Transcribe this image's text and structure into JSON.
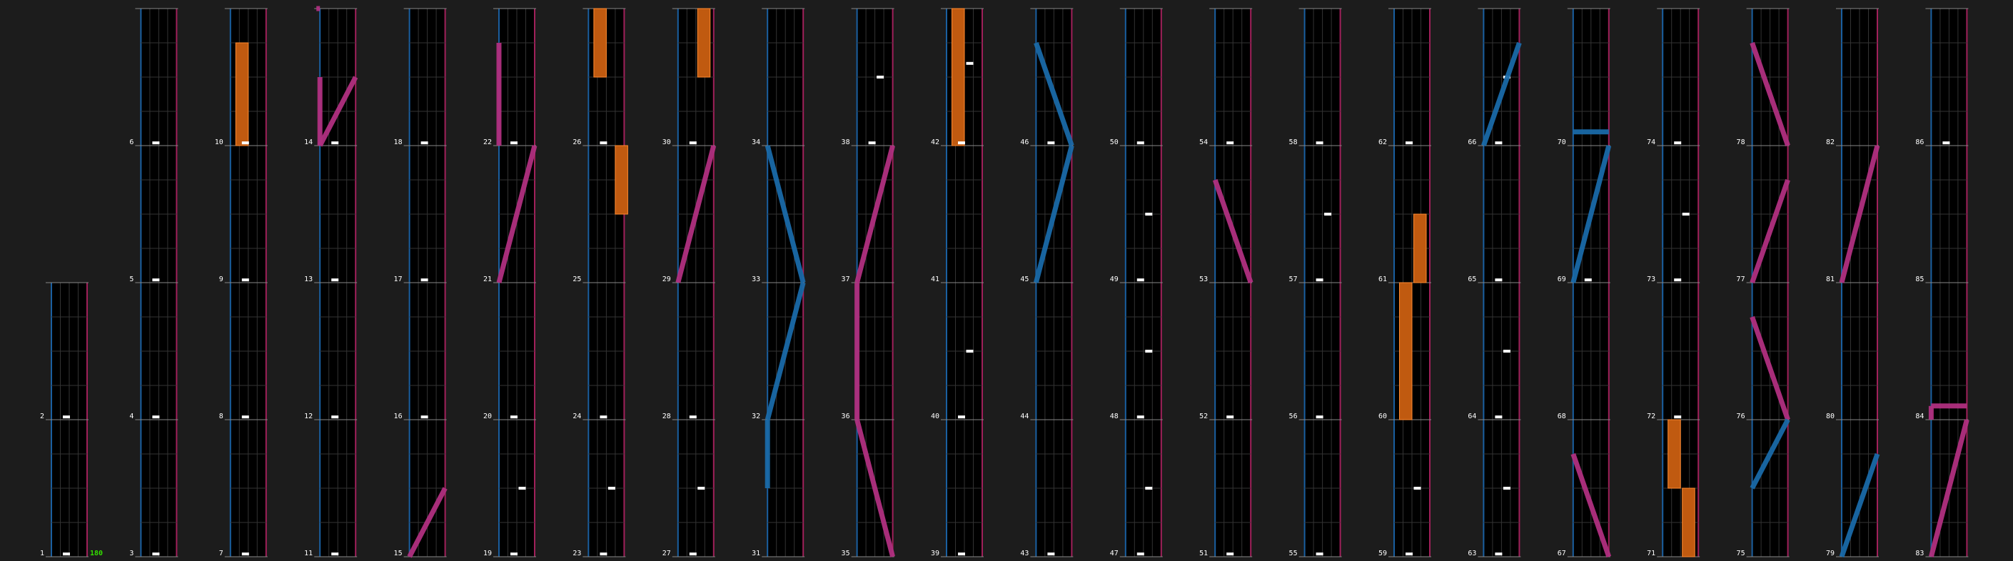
{
  "chart_data": {
    "type": "rhythm-game-chart",
    "bpm_label": "180",
    "measure_range": [
      1,
      86
    ],
    "colors": {
      "background": "#1c1c1c",
      "lane_bg": "#000000",
      "left_edge": "#1a5fa0",
      "right_edge": "#a0205a",
      "grid": "#333333",
      "measure_line": "#888888",
      "note": "#ffffff",
      "hold": "#c05a10",
      "hold_border": "#ff8a30",
      "blue_laser": "#1a6aa8",
      "pink_laser": "#b03080"
    },
    "notes": {
      "1": [
        0.9
      ],
      "2": [
        0.9
      ],
      "3": [
        0.9
      ],
      "4": [
        0.9
      ],
      "5": [
        0.9
      ],
      "6": [
        0.9
      ],
      "7": [
        0.9
      ],
      "8": [
        0.9
      ],
      "9": [
        0.9
      ],
      "10": [
        0.9
      ],
      "11": [
        0.9
      ],
      "12": [
        0.9
      ],
      "13": [
        0.9
      ],
      "14": [
        0.9
      ],
      "16": [
        0.9
      ],
      "17": [
        0.9
      ],
      "18": [
        0.9
      ],
      "19": [
        0.9,
        0.5
      ],
      "20": [
        0.9
      ],
      "22": [
        0.9
      ],
      "23": [
        0.9,
        0.5
      ],
      "24": [
        0.9
      ],
      "26": [
        0.9
      ],
      "27": [
        0.9,
        0.5
      ],
      "28": [
        0.9
      ],
      "30": [
        0.9
      ],
      "38": [
        0.9,
        0.5
      ],
      "39": [
        0.9
      ],
      "40": [
        0.9,
        0.5
      ],
      "42": [
        0.9,
        0.6
      ],
      "43": [
        0.9
      ],
      "46": [
        0.9
      ],
      "47": [
        0.9,
        0.5
      ],
      "48": [
        0.9,
        0.5
      ],
      "49": [
        0.9,
        0.5
      ],
      "50": [
        0.9
      ],
      "51": [
        0.9
      ],
      "52": [
        0.9
      ],
      "54": [
        0.9
      ],
      "55": [
        0.9
      ],
      "56": [
        0.9
      ],
      "57": [
        0.9,
        0.5
      ],
      "58": [
        0.9
      ],
      "59": [
        0.9,
        0.5
      ],
      "62": [
        0.9
      ],
      "63": [
        0.9,
        0.5
      ],
      "64": [
        0.9,
        0.5
      ],
      "65": [
        0.9
      ],
      "66": [
        0.9,
        0.5
      ],
      "69": [
        0.9
      ],
      "72": [
        0.9
      ],
      "73": [
        0.9,
        0.5
      ],
      "74": [
        0.9
      ],
      "86": [
        0.9
      ]
    },
    "holds": [
      {
        "measure": 10,
        "lane": 0.15,
        "start": 0.0,
        "end": 0.75
      },
      {
        "measure": 25,
        "lane": 0.75,
        "start": 0.5,
        "end": 1.0
      },
      {
        "measure": 26,
        "lane": 0.15,
        "start": 0.5,
        "end": 1.0
      },
      {
        "measure": 30,
        "lane": 0.55,
        "start": 0.5,
        "end": 1.0
      },
      {
        "measure": 42,
        "lane": 0.15,
        "start": 0.0,
        "end": 1.0
      },
      {
        "measure": 61,
        "lane": 0.55,
        "start": 0.0,
        "end": 0.5
      },
      {
        "measure": 60,
        "lane": 0.15,
        "start": 0.0,
        "end": 1.0
      },
      {
        "measure": 71,
        "lane": 0.15,
        "start": 0.5,
        "end": 1.0
      },
      {
        "measure": 71,
        "lane": 0.55,
        "start": 0.0,
        "end": 0.5
      }
    ],
    "lasers": [
      {
        "color": "pink",
        "measure": 14,
        "start": 0.0,
        "end": 0.5,
        "x1": 0.0,
        "x2": 1.0
      },
      {
        "color": "pink",
        "measure": 14,
        "start": 1.0,
        "end": 1.0,
        "x1": -0.1,
        "x2": 0.0
      },
      {
        "color": "pink",
        "measure": 14,
        "start": 0.0,
        "end": 0.5,
        "x1": 0.0,
        "x2": 0.0
      },
      {
        "color": "pink",
        "measure": 15,
        "start": 0.0,
        "end": 0.5,
        "x1": 0.0,
        "x2": 1.0
      },
      {
        "color": "pink",
        "measure": 21,
        "start": 0.0,
        "end": 1.0,
        "x1": 0.0,
        "x2": 1.0
      },
      {
        "color": "pink",
        "measure": 22,
        "start": 0.0,
        "end": 0.75,
        "x1": 0.0,
        "x2": 0.0
      },
      {
        "color": "pink",
        "measure": 29,
        "start": 0.0,
        "end": 1.0,
        "x1": 0.0,
        "x2": 1.0
      },
      {
        "color": "blue",
        "measure": 34,
        "start": 1.0,
        "end": 1.0,
        "x1": 0.0,
        "x2": 0.0
      },
      {
        "color": "blue",
        "measure": 33,
        "start": 0.0,
        "end": 1.0,
        "x1": 1.0,
        "x2": 0.0
      },
      {
        "color": "blue",
        "measure": 32,
        "start": 0.0,
        "end": 1.0,
        "x1": 0.0,
        "x2": 1.0
      },
      {
        "color": "blue",
        "measure": 31,
        "start": 0.5,
        "end": 1.0,
        "x1": 0.0,
        "x2": 0.0
      },
      {
        "color": "pink",
        "measure": 34,
        "start": 1.0,
        "end": 1.0,
        "x1": 1.0,
        "x2": 1.0
      },
      {
        "color": "pink",
        "measure": 37,
        "start": 0.0,
        "end": 1.0,
        "x1": 0.0,
        "x2": 1.0
      },
      {
        "color": "pink",
        "measure": 36,
        "start": 0.0,
        "end": 1.0,
        "x1": 0.0,
        "x2": 0.0
      },
      {
        "color": "pink",
        "measure": 35,
        "start": 0.0,
        "end": 1.0,
        "x1": 1.0,
        "x2": 0.0
      },
      {
        "color": "blue",
        "measure": 46,
        "start": 0.0,
        "end": 0.75,
        "x1": 1.0,
        "x2": 0.0
      },
      {
        "color": "blue",
        "measure": 45,
        "start": 0.0,
        "end": 1.0,
        "x1": 0.0,
        "x2": 1.0
      },
      {
        "color": "pink",
        "measure": 53,
        "start": 0.0,
        "end": 0.75,
        "x1": 1.0,
        "x2": 0.0
      },
      {
        "color": "blue",
        "measure": 69,
        "start": 0.0,
        "end": 1.0,
        "x1": 0.0,
        "x2": 1.0
      },
      {
        "color": "pink",
        "measure": 67,
        "start": 0.0,
        "end": 0.75,
        "x1": 1.0,
        "x2": 0.0
      },
      {
        "color": "blue",
        "measure": 66,
        "start": 0.0,
        "end": 0.75,
        "x1": 0.0,
        "x2": 1.0
      },
      {
        "color": "blue",
        "measure": 70,
        "start": 0.1,
        "end": 0.1,
        "x1": 0.0,
        "x2": 1.0
      },
      {
        "color": "pink",
        "measure": 77,
        "start": 0.0,
        "end": 0.75,
        "x1": 0.0,
        "x2": 1.0
      },
      {
        "color": "pink",
        "measure": 76,
        "start": 0.0,
        "end": 0.75,
        "x1": 1.0,
        "x2": 0.0
      },
      {
        "color": "blue",
        "measure": 75,
        "start": 0.5,
        "end": 1.0,
        "x1": 0.0,
        "x2": 1.0
      },
      {
        "color": "blue",
        "measure": 79,
        "start": 0.0,
        "end": 0.75,
        "x1": 0.0,
        "x2": 1.0
      },
      {
        "color": "pink",
        "measure": 78,
        "start": 0.0,
        "end": 0.75,
        "x1": 1.0,
        "x2": 0.0
      },
      {
        "color": "pink",
        "measure": 81,
        "start": 0.0,
        "end": 1.0,
        "x1": 0.0,
        "x2": 1.0
      },
      {
        "color": "pink",
        "measure": 83,
        "start": 0.0,
        "end": 1.0,
        "x1": 0.0,
        "x2": 1.0
      },
      {
        "color": "pink",
        "measure": 84,
        "start": 0.0,
        "end": 0.1,
        "x1": 0.0,
        "x2": 0.0
      },
      {
        "color": "pink",
        "measure": 84,
        "start": 0.1,
        "end": 0.1,
        "x1": 0.0,
        "x2": 1.0
      }
    ]
  }
}
